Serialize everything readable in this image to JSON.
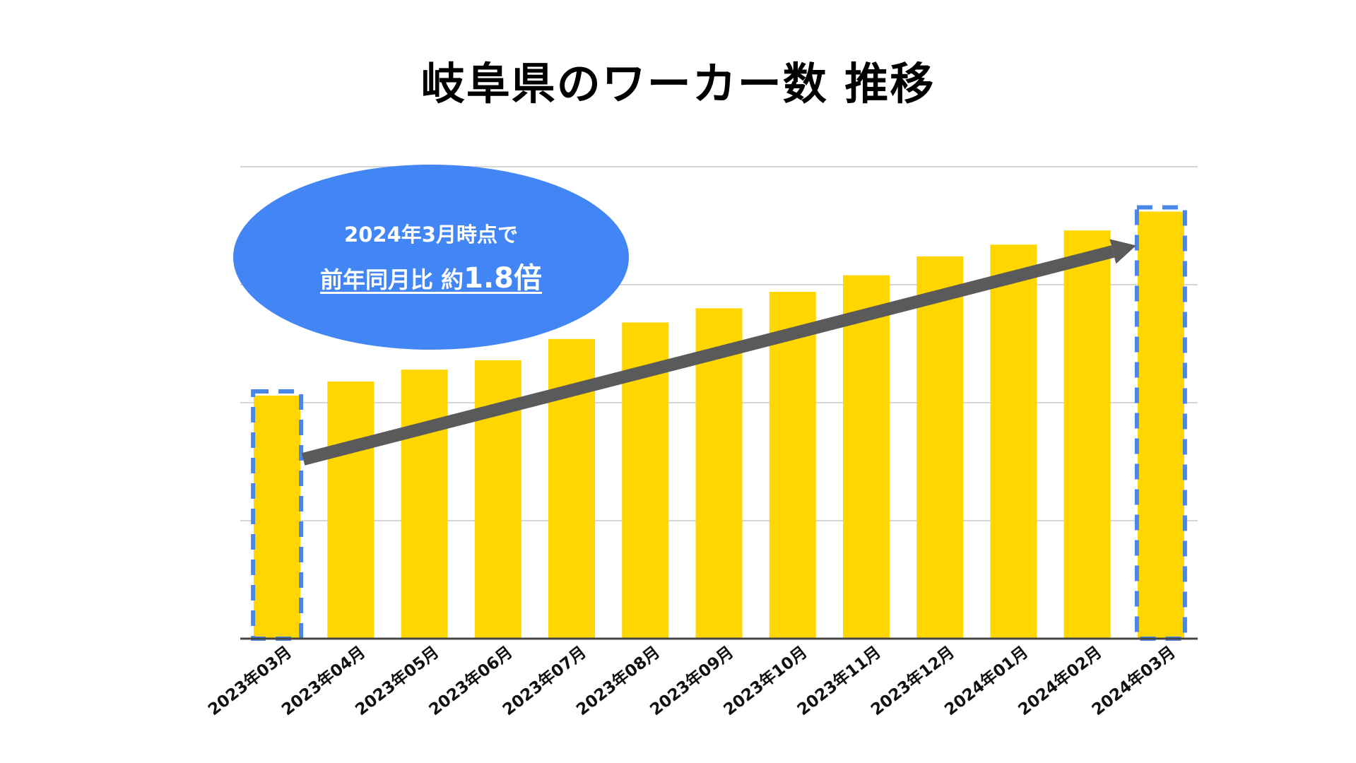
{
  "title": "岐阜県のワーカー数 推移",
  "colors": {
    "bar": "#FFD600",
    "highlight_border": "#4A86E8",
    "callout_fill": "#4285F4",
    "arrow": "#5A5A5A",
    "grid": "#D6D6D6",
    "axis": "#444444"
  },
  "callout": {
    "line1": "2024年3月時点で",
    "line2_prefix": "前年同月比 約",
    "line2_value": "1.8倍"
  },
  "chart_data": {
    "type": "bar",
    "title": "岐阜県のワーカー数 推移",
    "xlabel": "",
    "ylabel": "",
    "ylim": [
      0,
      100
    ],
    "grid": true,
    "gridlines": [
      25,
      50,
      75,
      100
    ],
    "categories": [
      "2023年03月",
      "2023年04月",
      "2023年05月",
      "2023年06月",
      "2023年07月",
      "2023年08月",
      "2023年09月",
      "2023年10月",
      "2023年11月",
      "2023年12月",
      "2024年01月",
      "2024年02月",
      "2024年03月"
    ],
    "values": [
      51.5,
      54.5,
      57.0,
      59.0,
      63.5,
      67.0,
      70.0,
      73.5,
      77.0,
      81.0,
      83.5,
      86.5,
      90.5
    ],
    "highlighted": [
      "2023年03月",
      "2024年03月"
    ],
    "annotation": "2024年3月時点で 前年同月比 約1.8倍"
  }
}
